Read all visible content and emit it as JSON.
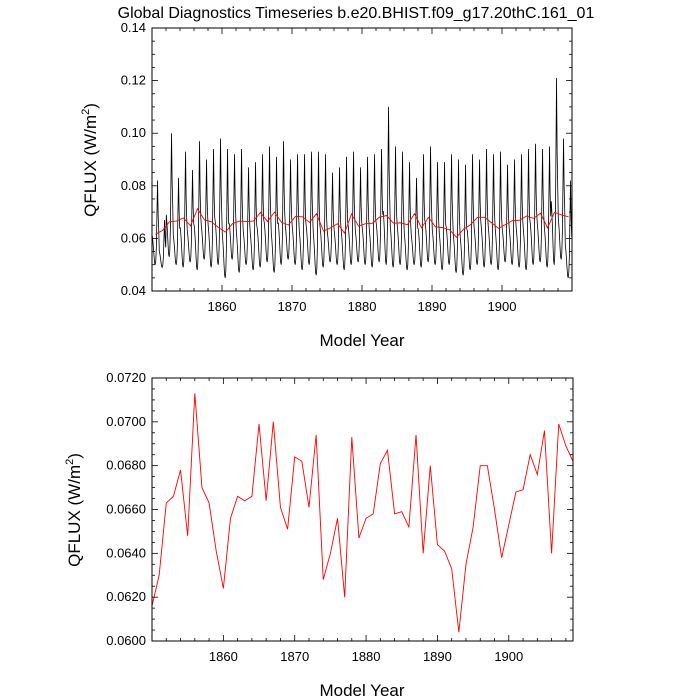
{
  "title": "Global Diagnostics Timeseries b.e20.BHIST.f09_g17.20thC.161_01",
  "colors": {
    "monthly": "#000000",
    "annual": "#ff0000",
    "axis": "#000000"
  },
  "chart_data": [
    {
      "type": "line",
      "name": "top-panel",
      "xlabel": "Model Year",
      "ylabel_main": "QFLUX (W/m",
      "ylabel_sup": "2",
      "ylabel_close": ")",
      "xlim": [
        1850,
        1910
      ],
      "ylim": [
        0.04,
        0.14
      ],
      "yticks": [
        0.04,
        0.06,
        0.08,
        0.1,
        0.12,
        0.14
      ],
      "yticklabels": [
        "0.04",
        "0.06",
        "0.08",
        "0.10",
        "0.12",
        "0.14"
      ],
      "xticks": [
        1860,
        1870,
        1880,
        1890,
        1900
      ],
      "xticklabels": [
        "1860",
        "1870",
        "1880",
        "1890",
        "1900"
      ],
      "series": [
        {
          "name": "monthly",
          "note": "monthly mean (one value per month, 1850-1909)",
          "peaks": [
            0.082,
            0.067,
            0.1,
            0.083,
            0.093,
            0.086,
            0.097,
            0.09,
            0.094,
            0.098,
            0.094,
            0.092,
            0.094,
            0.087,
            0.089,
            0.092,
            0.095,
            0.091,
            0.097,
            0.09,
            0.092,
            0.092,
            0.093,
            0.093,
            0.092,
            0.085,
            0.087,
            0.091,
            0.093,
            0.087,
            0.091,
            0.092,
            0.094,
            0.11,
            0.095,
            0.093,
            0.089,
            0.083,
            0.092,
            0.095,
            0.089,
            0.089,
            0.092,
            0.09,
            0.088,
            0.092,
            0.09,
            0.094,
            0.092,
            0.093,
            0.088,
            0.09,
            0.092,
            0.094,
            0.096,
            0.094,
            0.095,
            0.121,
            0.098,
            0.082
          ],
          "troughs": [
            0.05,
            0.049,
            0.053,
            0.05,
            0.049,
            0.051,
            0.048,
            0.052,
            0.049,
            0.05,
            0.045,
            0.052,
            0.047,
            0.05,
            0.048,
            0.049,
            0.051,
            0.047,
            0.05,
            0.052,
            0.05,
            0.048,
            0.05,
            0.046,
            0.049,
            0.051,
            0.05,
            0.048,
            0.05,
            0.051,
            0.05,
            0.049,
            0.051,
            0.05,
            0.049,
            0.05,
            0.048,
            0.05,
            0.049,
            0.051,
            0.05,
            0.048,
            0.05,
            0.047,
            0.046,
            0.048,
            0.05,
            0.049,
            0.05,
            0.048,
            0.051,
            0.05,
            0.049,
            0.048,
            0.05,
            0.051,
            0.049,
            0.05,
            0.052,
            0.045
          ]
        },
        {
          "name": "annual",
          "x": [
            1850,
            1851,
            1852,
            1853,
            1854,
            1855,
            1856,
            1857,
            1858,
            1859,
            1860,
            1861,
            1862,
            1863,
            1864,
            1865,
            1866,
            1867,
            1868,
            1869,
            1870,
            1871,
            1872,
            1873,
            1874,
            1875,
            1876,
            1877,
            1878,
            1879,
            1880,
            1881,
            1882,
            1883,
            1884,
            1885,
            1886,
            1887,
            1888,
            1889,
            1890,
            1891,
            1892,
            1893,
            1894,
            1895,
            1896,
            1897,
            1898,
            1899,
            1900,
            1901,
            1902,
            1903,
            1904,
            1905,
            1906,
            1907,
            1908,
            1909
          ],
          "values": [
            0.0616,
            0.063,
            0.0663,
            0.0666,
            0.0678,
            0.0648,
            0.0713,
            0.067,
            0.0663,
            0.0641,
            0.0624,
            0.0656,
            0.0666,
            0.0664,
            0.0666,
            0.0699,
            0.0664,
            0.07,
            0.0661,
            0.0651,
            0.0684,
            0.0682,
            0.0661,
            0.0694,
            0.0628,
            0.064,
            0.0656,
            0.062,
            0.0693,
            0.0647,
            0.0656,
            0.0658,
            0.0681,
            0.0687,
            0.0658,
            0.0659,
            0.0652,
            0.0694,
            0.064,
            0.068,
            0.0644,
            0.0641,
            0.0633,
            0.0604,
            0.0635,
            0.0652,
            0.068,
            0.068,
            0.066,
            0.0638,
            0.0653,
            0.0668,
            0.0669,
            0.0685,
            0.0676,
            0.0696,
            0.064,
            0.0699,
            0.0689,
            0.0682
          ]
        }
      ]
    },
    {
      "type": "line",
      "name": "bottom-panel",
      "xlabel": "Model Year",
      "ylabel_main": "QFLUX (W/m",
      "ylabel_sup": "2",
      "ylabel_close": ")",
      "xlim": [
        1850,
        1909
      ],
      "ylim": [
        0.06,
        0.072
      ],
      "yticks": [
        0.06,
        0.062,
        0.064,
        0.066,
        0.068,
        0.07,
        0.072
      ],
      "yticklabels": [
        "0.0600",
        "0.0620",
        "0.0640",
        "0.0660",
        "0.0680",
        "0.0700",
        "0.0720"
      ],
      "xticks": [
        1860,
        1870,
        1880,
        1890,
        1900
      ],
      "xticklabels": [
        "1860",
        "1870",
        "1880",
        "1890",
        "1900"
      ],
      "series": [
        {
          "name": "annual",
          "x": [
            1850,
            1851,
            1852,
            1853,
            1854,
            1855,
            1856,
            1857,
            1858,
            1859,
            1860,
            1861,
            1862,
            1863,
            1864,
            1865,
            1866,
            1867,
            1868,
            1869,
            1870,
            1871,
            1872,
            1873,
            1874,
            1875,
            1876,
            1877,
            1878,
            1879,
            1880,
            1881,
            1882,
            1883,
            1884,
            1885,
            1886,
            1887,
            1888,
            1889,
            1890,
            1891,
            1892,
            1893,
            1894,
            1895,
            1896,
            1897,
            1898,
            1899,
            1900,
            1901,
            1902,
            1903,
            1904,
            1905,
            1906,
            1907,
            1908,
            1909
          ],
          "values": [
            0.0616,
            0.063,
            0.0663,
            0.0666,
            0.0678,
            0.0648,
            0.0713,
            0.067,
            0.0663,
            0.0641,
            0.0624,
            0.0656,
            0.0666,
            0.0664,
            0.0666,
            0.0699,
            0.0664,
            0.07,
            0.0661,
            0.0651,
            0.0684,
            0.0682,
            0.0661,
            0.0694,
            0.0628,
            0.064,
            0.0656,
            0.062,
            0.0693,
            0.0647,
            0.0656,
            0.0658,
            0.0681,
            0.0687,
            0.0658,
            0.0659,
            0.0652,
            0.0694,
            0.064,
            0.068,
            0.0644,
            0.0641,
            0.0633,
            0.0604,
            0.0635,
            0.0652,
            0.068,
            0.068,
            0.066,
            0.0638,
            0.0653,
            0.0668,
            0.0669,
            0.0685,
            0.0676,
            0.0696,
            0.064,
            0.0699,
            0.0689,
            0.0682
          ]
        }
      ]
    }
  ]
}
